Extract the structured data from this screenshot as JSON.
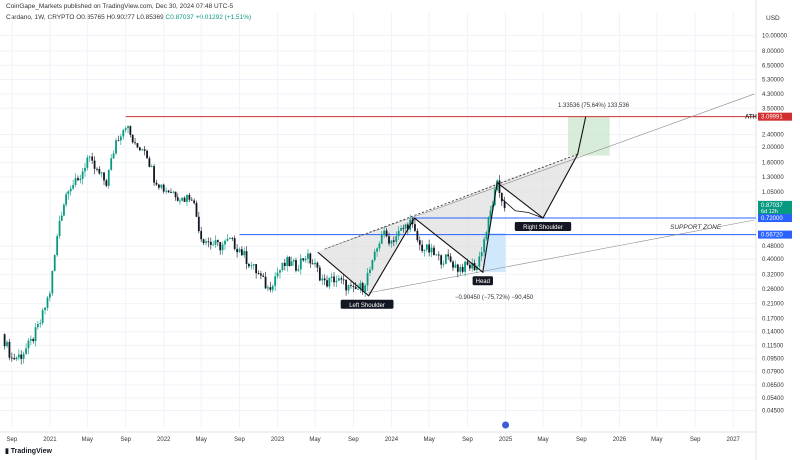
{
  "header": {
    "publisher": "CoinGape_Markets published on TradingView.com, Dec 30, 2024 07:48 UTC-5",
    "symbol": "Cardano, 1W, CRYPTO",
    "open": "O0.85765",
    "high": "H0.90277",
    "low": "L0.85369",
    "close": "C0.87037",
    "change": "+0.01292 (+1.51%)"
  },
  "footer": {
    "logo": "TradingView"
  },
  "colors": {
    "up": "#089981",
    "down": "#131722",
    "ath": "#d32f2f",
    "support": "#2962ff",
    "target_box": "#c8e6c9",
    "measure_box": "#bbdefb",
    "pattern_fill": "#d6d6d6"
  },
  "chart_data": {
    "type": "candlestick",
    "title": "",
    "axis_unit": "USD",
    "yscale": "log",
    "ylim": [
      0.035,
      14
    ],
    "xlim": [
      "2020-07-25",
      "2027-03-15"
    ],
    "x_ticks": [
      {
        "label": "Sep",
        "date": "2020-09-01"
      },
      {
        "label": "2021",
        "date": "2021-01-01"
      },
      {
        "label": "May",
        "date": "2021-05-01"
      },
      {
        "label": "Sep",
        "date": "2021-09-01"
      },
      {
        "label": "2022",
        "date": "2022-01-01"
      },
      {
        "label": "May",
        "date": "2022-05-01"
      },
      {
        "label": "Sep",
        "date": "2022-09-01"
      },
      {
        "label": "2023",
        "date": "2023-01-01"
      },
      {
        "label": "May",
        "date": "2023-05-01"
      },
      {
        "label": "Sep",
        "date": "2023-09-01"
      },
      {
        "label": "2024",
        "date": "2024-01-01"
      },
      {
        "label": "May",
        "date": "2024-05-01"
      },
      {
        "label": "Sep",
        "date": "2024-09-01"
      },
      {
        "label": "2025",
        "date": "2025-01-01"
      },
      {
        "label": "May",
        "date": "2025-05-01"
      },
      {
        "label": "Sep",
        "date": "2025-09-01"
      },
      {
        "label": "2026",
        "date": "2026-01-01"
      },
      {
        "label": "May",
        "date": "2026-05-01"
      },
      {
        "label": "Sep",
        "date": "2026-09-01"
      },
      {
        "label": "2027",
        "date": "2027-01-01"
      }
    ],
    "y_ticks": [
      {
        "label": "10.00000",
        "value": 10
      },
      {
        "label": "8.00000",
        "value": 8
      },
      {
        "label": "6.50000",
        "value": 6.5
      },
      {
        "label": "5.30000",
        "value": 5.3
      },
      {
        "label": "4.30000",
        "value": 4.3
      },
      {
        "label": "3.50000",
        "value": 3.5
      },
      {
        "label": "2.40000",
        "value": 2.4
      },
      {
        "label": "2.00000",
        "value": 2.0
      },
      {
        "label": "1.60000",
        "value": 1.6
      },
      {
        "label": "1.30000",
        "value": 1.3
      },
      {
        "label": "1.05000",
        "value": 1.05
      },
      {
        "label": "0.48000",
        "value": 0.48
      },
      {
        "label": "0.40000",
        "value": 0.4
      },
      {
        "label": "0.32000",
        "value": 0.32
      },
      {
        "label": "0.26000",
        "value": 0.26
      },
      {
        "label": "0.21000",
        "value": 0.21
      },
      {
        "label": "0.17000",
        "value": 0.17
      },
      {
        "label": "0.14000",
        "value": 0.14
      },
      {
        "label": "0.11500",
        "value": 0.115
      },
      {
        "label": "0.09500",
        "value": 0.095
      },
      {
        "label": "0.07900",
        "value": 0.079
      },
      {
        "label": "0.06500",
        "value": 0.065
      },
      {
        "label": "0.05400",
        "value": 0.054
      },
      {
        "label": "0.04500",
        "value": 0.045
      }
    ],
    "price_badges": [
      {
        "label": "3.09991",
        "value": 3.09991,
        "color": "#d32f2f"
      },
      {
        "label": "0.87037",
        "sublabel": "6d 12h",
        "value": 0.87037,
        "color": "#089981"
      },
      {
        "label": "0.72000",
        "value": 0.72,
        "color": "#2962ff"
      },
      {
        "label": "0.56720",
        "value": 0.5672,
        "color": "#2962ff"
      }
    ],
    "price_path": [
      [
        "2020-08-01",
        0.135
      ],
      [
        "2020-09-01",
        0.095
      ],
      [
        "2020-10-01",
        0.1
      ],
      [
        "2020-11-01",
        0.12
      ],
      [
        "2020-12-01",
        0.16
      ],
      [
        "2021-01-01",
        0.25
      ],
      [
        "2021-02-01",
        0.7
      ],
      [
        "2021-03-01",
        1.15
      ],
      [
        "2021-04-01",
        1.2
      ],
      [
        "2021-05-01",
        1.7
      ],
      [
        "2021-06-01",
        1.4
      ],
      [
        "2021-07-01",
        1.2
      ],
      [
        "2021-08-01",
        2.2
      ],
      [
        "2021-09-01",
        2.8
      ],
      [
        "2021-10-01",
        2.0
      ],
      [
        "2021-11-01",
        2.0
      ],
      [
        "2021-12-01",
        1.3
      ],
      [
        "2022-01-01",
        1.1
      ],
      [
        "2022-02-01",
        1.05
      ],
      [
        "2022-03-01",
        0.95
      ],
      [
        "2022-04-01",
        1.0
      ],
      [
        "2022-05-01",
        0.55
      ],
      [
        "2022-06-01",
        0.5
      ],
      [
        "2022-07-01",
        0.48
      ],
      [
        "2022-08-01",
        0.52
      ],
      [
        "2022-09-01",
        0.46
      ],
      [
        "2022-10-01",
        0.38
      ],
      [
        "2022-11-01",
        0.32
      ],
      [
        "2022-12-01",
        0.26
      ],
      [
        "2023-01-01",
        0.33
      ],
      [
        "2023-02-01",
        0.38
      ],
      [
        "2023-03-01",
        0.36
      ],
      [
        "2023-04-01",
        0.42
      ],
      [
        "2023-05-01",
        0.36
      ],
      [
        "2023-06-01",
        0.28
      ],
      [
        "2023-07-01",
        0.3
      ],
      [
        "2023-08-01",
        0.28
      ],
      [
        "2023-09-01",
        0.25
      ],
      [
        "2023-10-01",
        0.27
      ],
      [
        "2023-11-01",
        0.37
      ],
      [
        "2023-12-01",
        0.58
      ],
      [
        "2024-01-01",
        0.52
      ],
      [
        "2024-02-01",
        0.6
      ],
      [
        "2024-03-01",
        0.68
      ],
      [
        "2024-04-01",
        0.48
      ],
      [
        "2024-05-01",
        0.45
      ],
      [
        "2024-06-01",
        0.4
      ],
      [
        "2024-07-01",
        0.4
      ],
      [
        "2024-08-01",
        0.35
      ],
      [
        "2024-09-01",
        0.36
      ],
      [
        "2024-10-01",
        0.36
      ],
      [
        "2024-11-01",
        0.6
      ],
      [
        "2024-11-20",
        0.9
      ],
      [
        "2024-12-05",
        1.15
      ],
      [
        "2024-12-20",
        0.95
      ],
      [
        "2024-12-29",
        0.87037
      ]
    ],
    "all_time_high": {
      "label": "ATH",
      "value": 3.09991,
      "date": "2021-09-01"
    },
    "support_levels": [
      {
        "label": "SUPPORT ZONE",
        "value": 0.72
      },
      {
        "label": "",
        "value": 0.5672
      }
    ],
    "pattern_points": [
      {
        "label": "Left Shoulder",
        "date": "2023-10-15",
        "value": 0.235
      },
      {
        "label": "Head",
        "date": "2024-10-20",
        "value": 0.33
      },
      {
        "label": "Right Shoulder",
        "date": "2025-05-01",
        "value": 0.72
      }
    ],
    "measurements": [
      {
        "label": "1.33536 (75.64%) 133,536"
      },
      {
        "label": "−0.90450 (−75.72%) −90,450"
      }
    ]
  }
}
